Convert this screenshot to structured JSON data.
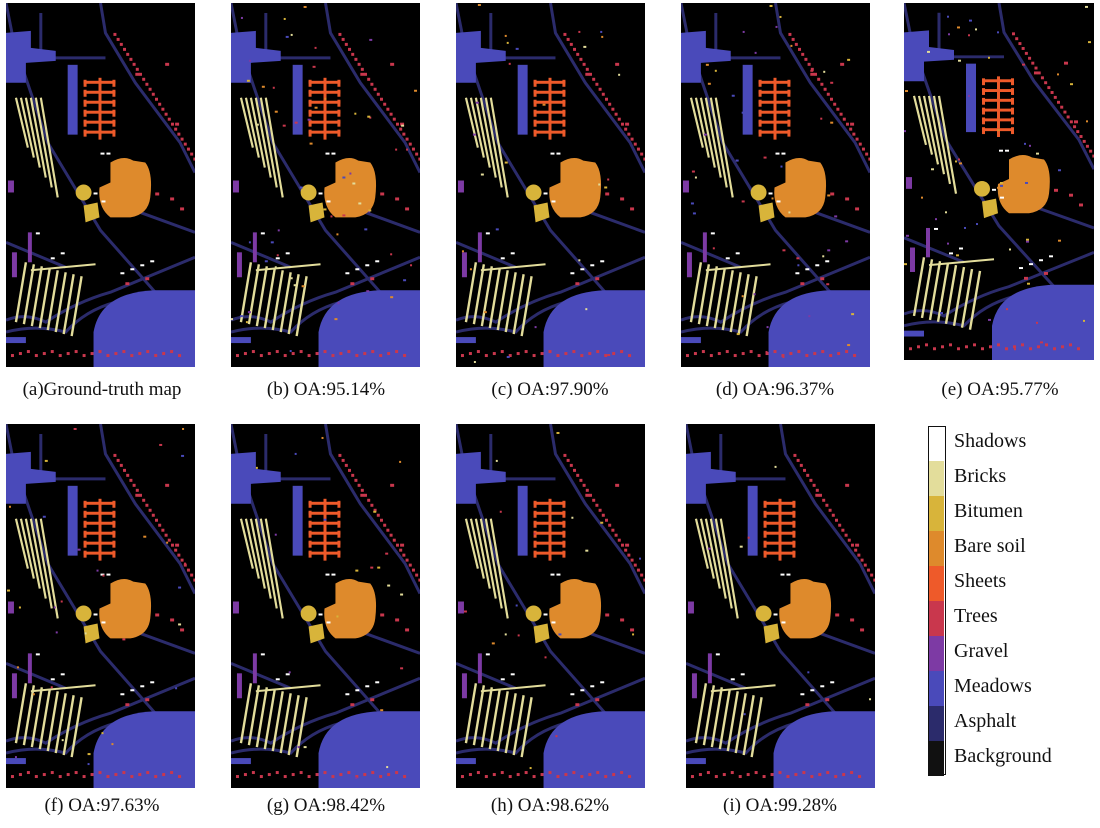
{
  "figure": {
    "panels": [
      {
        "label": "(a)Ground-truth map",
        "noise": 0
      },
      {
        "label": "(b) OA:95.14%",
        "noise": 0.9
      },
      {
        "label": "(c) OA:97.90%",
        "noise": 0.4
      },
      {
        "label": "(d) OA:96.37%",
        "noise": 0.7
      },
      {
        "label": "(e) OA:95.77%",
        "noise": 0.8
      },
      {
        "label": "(f)  OA:97.63%",
        "noise": 0.45
      },
      {
        "label": "(g)  OA:98.42%",
        "noise": 0.3
      },
      {
        "label": "(h)  OA:98.62%",
        "noise": 0.25
      },
      {
        "label": "(i)  OA:99.28%",
        "noise": 0.1
      }
    ],
    "legend": [
      {
        "label": "Shadows",
        "color": "#ffffff"
      },
      {
        "label": "Bricks",
        "color": "#e3dd9b"
      },
      {
        "label": "Bitumen",
        "color": "#d8b43a"
      },
      {
        "label": "Bare soil",
        "color": "#de8a2c"
      },
      {
        "label": "Sheets",
        "color": "#ee5a2a"
      },
      {
        "label": "Trees",
        "color": "#c9374d"
      },
      {
        "label": "Gravel",
        "color": "#7d3aa4"
      },
      {
        "label": "Meadows",
        "color": "#4a4aba"
      },
      {
        "label": "Asphalt",
        "color": "#2b2b6b"
      },
      {
        "label": "Background",
        "color": "#111111"
      }
    ]
  }
}
